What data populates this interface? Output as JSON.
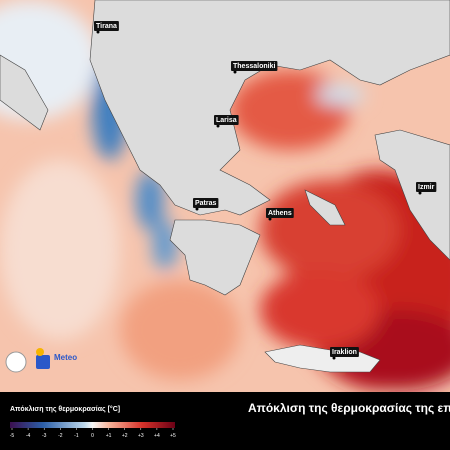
{
  "map": {
    "cities": [
      {
        "label": "Tirana"
      },
      {
        "label": "Thessaloniki"
      },
      {
        "label": "Larisa"
      },
      {
        "label": "Patras"
      },
      {
        "label": "Athens"
      },
      {
        "label": "Izmir"
      },
      {
        "label": "Iraklion"
      }
    ],
    "logo": "Meteo"
  },
  "legend": {
    "title": "Απόκλιση της θερμοκρασίας [°C]",
    "ticks": [
      -5,
      -4,
      -3,
      -2,
      -1,
      0,
      {
        "value": 1,
        "label": "+1"
      },
      {
        "value": 2,
        "label": "+2"
      },
      {
        "value": 3,
        "label": "+3"
      },
      {
        "value": 4,
        "label": "+4"
      },
      {
        "value": 5,
        "label": "+5"
      }
    ]
  },
  "title": "Απόκλιση της θερμοκρασίας της επιφ"
}
